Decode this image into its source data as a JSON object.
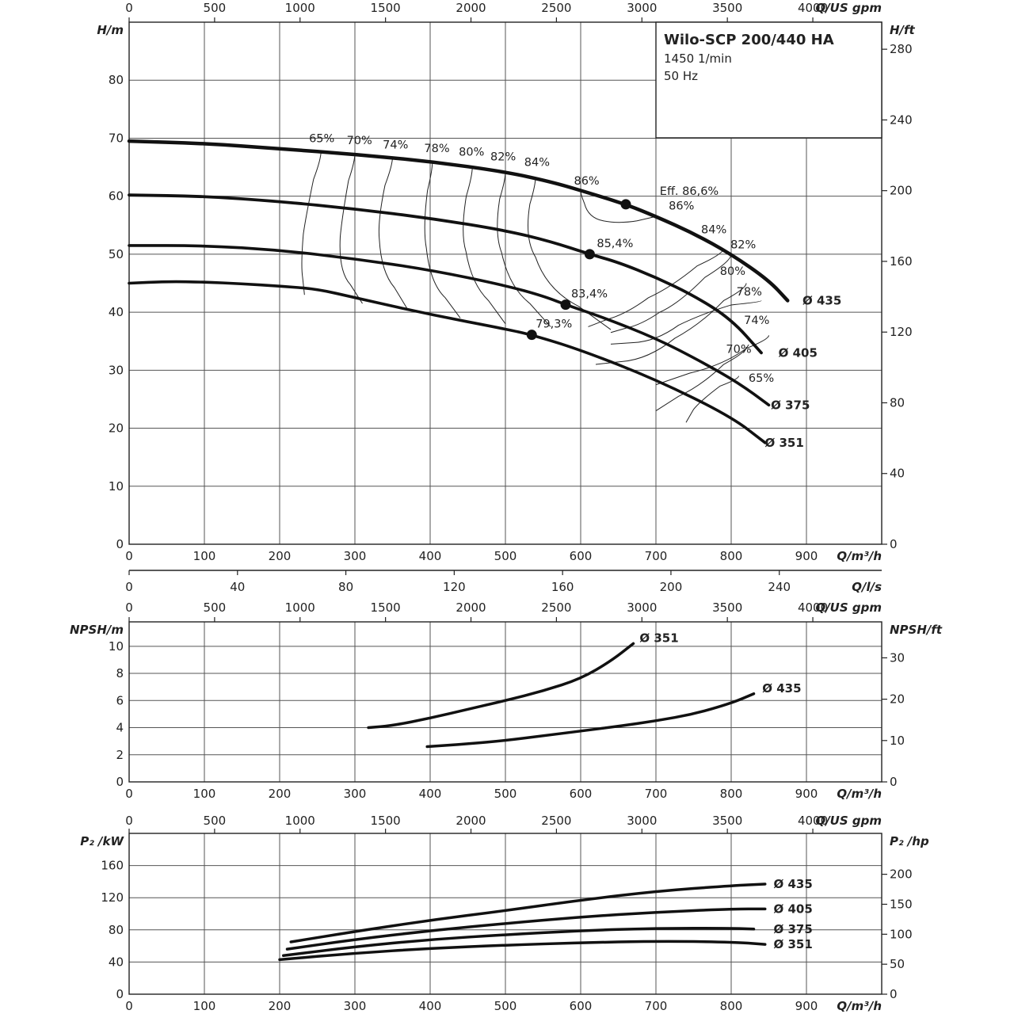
{
  "info_box": {
    "title": "Wilo-SCP 200/440 HA",
    "speed": "1450 1/min",
    "frequency": "50 Hz"
  },
  "axis_labels": {
    "q_m3h": "Q/m³/h",
    "q_usgpm": "Q/US gpm",
    "q_ls": "Q/l/s",
    "h_m": "H/m",
    "h_ft": "H/ft",
    "npsh_m": "NPSH/m",
    "npsh_ft": "NPSH/ft",
    "p2_kw": "P₂ /kW",
    "p2_hp": "P₂ /hp"
  },
  "chart_data": [
    {
      "type": "line",
      "title": "",
      "xlabel": "Q/m³/h",
      "ylabel": "H/m",
      "xlim": [
        0,
        1000
      ],
      "ylim": [
        0,
        90
      ],
      "x_ticks": [
        "0",
        "100",
        "200",
        "300",
        "400",
        "500",
        "600",
        "700",
        "800",
        "900"
      ],
      "y_ticks": [
        "0",
        "10",
        "20",
        "30",
        "40",
        "50",
        "60",
        "70",
        "80"
      ],
      "secondary_y": {
        "label": "H/ft",
        "range": [
          0,
          295.3
        ],
        "ticks": [
          "0",
          "40",
          "80",
          "120",
          "160",
          "200",
          "240",
          "280"
        ]
      },
      "secondary_x_top": {
        "label": "Q/US gpm",
        "ticks": [
          "0",
          "500",
          "1000",
          "1500",
          "2000",
          "2500",
          "3000",
          "3500",
          "4000"
        ]
      },
      "secondary_x_bottom": {
        "label": "Q/l/s",
        "ticks": [
          "0",
          "40",
          "80",
          "120",
          "160",
          "200",
          "240"
        ]
      },
      "series": [
        {
          "name": "Ø 435",
          "x": [
            0,
            100,
            200,
            300,
            400,
            500,
            560,
            600,
            660,
            700,
            750,
            800,
            850,
            875
          ],
          "y": [
            69.5,
            69.1,
            68.2,
            67.2,
            66.0,
            64.2,
            62.5,
            61.0,
            58.6,
            56.5,
            53.6,
            50.0,
            45.5,
            42.0
          ]
        },
        {
          "name": "Ø 405",
          "x": [
            0,
            100,
            200,
            300,
            400,
            500,
            560,
            612,
            650,
            700,
            750,
            800,
            840
          ],
          "y": [
            60.2,
            60.0,
            59.1,
            57.8,
            56.2,
            54.1,
            52.2,
            50.0,
            48.6,
            46.0,
            42.9,
            38.8,
            33.0
          ]
        },
        {
          "name": "Ø 375",
          "x": [
            0,
            100,
            200,
            300,
            400,
            500,
            550,
            580,
            630,
            700,
            760,
            810,
            850
          ],
          "y": [
            51.5,
            51.5,
            50.7,
            49.2,
            47.3,
            44.6,
            42.8,
            41.3,
            39.1,
            35.5,
            31.5,
            27.8,
            24.0
          ]
        },
        {
          "name": "Ø 351",
          "x": [
            0,
            50,
            100,
            150,
            200,
            250,
            300,
            400,
            500,
            535,
            600,
            700,
            800,
            845
          ],
          "y": [
            45.0,
            45.3,
            45.2,
            44.9,
            44.5,
            44.0,
            42.5,
            39.6,
            37.1,
            36.1,
            33.5,
            28.4,
            22.0,
            17.5
          ]
        }
      ],
      "bep_points": [
        {
          "x": 660,
          "y": 58.6,
          "label": "Eff. 86,6%"
        },
        {
          "x": 612,
          "y": 50.0,
          "label": "85,4%"
        },
        {
          "x": 580,
          "y": 41.3,
          "label": "83,4%"
        },
        {
          "x": 535,
          "y": 36.1,
          "label": "79,3%"
        }
      ],
      "efficiency_labels": [
        "65%",
        "70%",
        "74%",
        "78%",
        "80%",
        "82%",
        "84%",
        "86%",
        "86%",
        "84%",
        "82%",
        "80%",
        "78%",
        "74%",
        "70%",
        "65%"
      ]
    },
    {
      "type": "line",
      "title": "",
      "xlabel": "Q/m³/h",
      "ylabel": "NPSH/m",
      "xlim": [
        0,
        1000
      ],
      "ylim": [
        0,
        11.8
      ],
      "x_ticks": [
        "0",
        "100",
        "200",
        "300",
        "400",
        "500",
        "600",
        "700",
        "800",
        "900"
      ],
      "y_ticks": [
        "0",
        "2",
        "4",
        "6",
        "8",
        "10"
      ],
      "secondary_y": {
        "label": "NPSH/ft",
        "range": [
          0,
          38.7
        ],
        "ticks": [
          "0",
          "10",
          "20",
          "30"
        ]
      },
      "secondary_x_top": {
        "label": "Q/US gpm",
        "ticks": [
          "0",
          "500",
          "1000",
          "1500",
          "2000",
          "2500",
          "3000",
          "3500",
          "4000"
        ]
      },
      "series": [
        {
          "name": "Ø 351",
          "x": [
            318,
            350,
            400,
            450,
            500,
            550,
            600,
            640,
            670
          ],
          "y": [
            4.0,
            4.15,
            4.7,
            5.35,
            6.0,
            6.7,
            7.6,
            8.9,
            10.2
          ]
        },
        {
          "name": "Ø 435",
          "x": [
            396,
            450,
            500,
            550,
            600,
            650,
            700,
            750,
            800,
            830
          ],
          "y": [
            2.6,
            2.8,
            3.05,
            3.4,
            3.75,
            4.1,
            4.5,
            5.0,
            5.8,
            6.5
          ]
        }
      ]
    },
    {
      "type": "line",
      "title": "",
      "xlabel": "Q/m³/h",
      "ylabel": "P₂ /kW",
      "xlim": [
        0,
        1000
      ],
      "ylim": [
        0,
        200
      ],
      "x_ticks": [
        "0",
        "100",
        "200",
        "300",
        "400",
        "500",
        "600",
        "700",
        "800",
        "900"
      ],
      "y_ticks": [
        "0",
        "40",
        "80",
        "120",
        "160"
      ],
      "secondary_y": {
        "label": "P₂ /hp",
        "range": [
          0,
          268.2
        ],
        "ticks": [
          "0",
          "50",
          "100",
          "150",
          "200"
        ]
      },
      "secondary_x_top": {
        "label": "Q/US gpm",
        "ticks": [
          "0",
          "500",
          "1000",
          "1500",
          "2000",
          "2500",
          "3000",
          "3500",
          "4000"
        ]
      },
      "series": [
        {
          "name": "Ø 435",
          "x": [
            215,
            300,
            400,
            500,
            600,
            700,
            800,
            845
          ],
          "y": [
            65,
            78,
            92,
            104,
            117,
            128,
            135,
            137
          ]
        },
        {
          "name": "Ø 405",
          "x": [
            210,
            300,
            400,
            500,
            600,
            700,
            800,
            845
          ],
          "y": [
            56,
            68,
            79,
            88,
            96,
            102,
            106,
            106
          ]
        },
        {
          "name": "Ø 375",
          "x": [
            205,
            300,
            400,
            500,
            600,
            700,
            800,
            830
          ],
          "y": [
            48,
            59,
            68,
            74,
            79,
            82,
            82,
            81
          ]
        },
        {
          "name": "Ø 351",
          "x": [
            200,
            300,
            400,
            500,
            600,
            700,
            800,
            845
          ],
          "y": [
            43,
            51,
            57,
            61,
            64,
            66,
            65,
            62
          ]
        }
      ]
    }
  ]
}
